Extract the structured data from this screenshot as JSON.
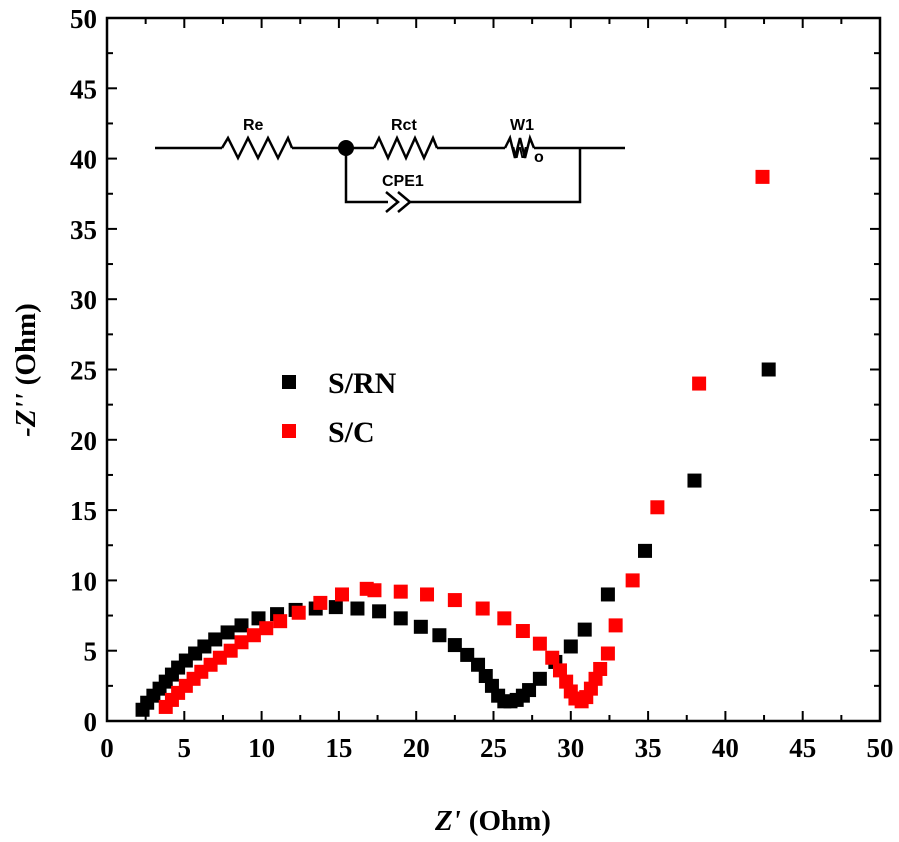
{
  "chart_data": {
    "type": "scatter",
    "xlabel": {
      "symbol": "Z'",
      "unit": "(Ohm)"
    },
    "ylabel": {
      "symbol": "-Z''",
      "unit": "(Ohm)"
    },
    "xlim": [
      0,
      50
    ],
    "ylim": [
      0,
      50
    ],
    "x_ticks": [
      "0",
      "5",
      "10",
      "15",
      "20",
      "25",
      "30",
      "35",
      "40",
      "45",
      "50"
    ],
    "y_ticks": [
      "0",
      "5",
      "10",
      "15",
      "20",
      "25",
      "30",
      "35",
      "40",
      "45",
      "50"
    ],
    "grid": false,
    "legend_position": "middle-left",
    "series": [
      {
        "name": "S/RN",
        "color": "#000000",
        "marker": "square",
        "points": [
          [
            2.3,
            0.8
          ],
          [
            2.6,
            1.3
          ],
          [
            3.0,
            1.8
          ],
          [
            3.4,
            2.3
          ],
          [
            3.8,
            2.8
          ],
          [
            4.2,
            3.3
          ],
          [
            4.6,
            3.8
          ],
          [
            5.1,
            4.3
          ],
          [
            5.7,
            4.8
          ],
          [
            6.3,
            5.3
          ],
          [
            7.0,
            5.8
          ],
          [
            7.8,
            6.3
          ],
          [
            8.7,
            6.8
          ],
          [
            9.8,
            7.3
          ],
          [
            11.0,
            7.6
          ],
          [
            12.2,
            7.9
          ],
          [
            13.5,
            8.0
          ],
          [
            14.8,
            8.1
          ],
          [
            16.2,
            8.0
          ],
          [
            17.6,
            7.8
          ],
          [
            19.0,
            7.3
          ],
          [
            20.3,
            6.7
          ],
          [
            21.5,
            6.1
          ],
          [
            22.5,
            5.4
          ],
          [
            23.3,
            4.7
          ],
          [
            24.0,
            4.0
          ],
          [
            24.5,
            3.2
          ],
          [
            24.9,
            2.5
          ],
          [
            25.3,
            1.8
          ],
          [
            25.7,
            1.4
          ],
          [
            26.1,
            1.4
          ],
          [
            26.5,
            1.5
          ],
          [
            26.9,
            1.8
          ],
          [
            27.3,
            2.2
          ],
          [
            28.0,
            3.0
          ],
          [
            29.0,
            4.2
          ],
          [
            30.0,
            5.3
          ],
          [
            30.9,
            6.5
          ],
          [
            32.4,
            9.0
          ],
          [
            34.8,
            12.1
          ],
          [
            38.0,
            17.1
          ],
          [
            42.8,
            25.0
          ]
        ]
      },
      {
        "name": "S/C",
        "color": "#ff0000",
        "marker": "square",
        "points": [
          [
            3.8,
            1.0
          ],
          [
            4.2,
            1.5
          ],
          [
            4.6,
            2.0
          ],
          [
            5.1,
            2.5
          ],
          [
            5.6,
            3.0
          ],
          [
            6.1,
            3.5
          ],
          [
            6.7,
            4.0
          ],
          [
            7.3,
            4.5
          ],
          [
            8.0,
            5.0
          ],
          [
            8.7,
            5.6
          ],
          [
            9.5,
            6.1
          ],
          [
            10.3,
            6.6
          ],
          [
            11.2,
            7.1
          ],
          [
            12.4,
            7.7
          ],
          [
            13.8,
            8.4
          ],
          [
            15.2,
            9.0
          ],
          [
            16.8,
            9.4
          ],
          [
            17.3,
            9.3
          ],
          [
            19.0,
            9.2
          ],
          [
            20.7,
            9.0
          ],
          [
            22.5,
            8.6
          ],
          [
            24.3,
            8.0
          ],
          [
            25.7,
            7.3
          ],
          [
            26.9,
            6.4
          ],
          [
            28.0,
            5.5
          ],
          [
            28.8,
            4.5
          ],
          [
            29.3,
            3.6
          ],
          [
            29.7,
            2.8
          ],
          [
            30.0,
            2.1
          ],
          [
            30.3,
            1.6
          ],
          [
            30.7,
            1.4
          ],
          [
            31.0,
            1.7
          ],
          [
            31.3,
            2.3
          ],
          [
            31.6,
            3.0
          ],
          [
            31.9,
            3.7
          ],
          [
            32.4,
            4.8
          ],
          [
            32.9,
            6.8
          ],
          [
            34.0,
            10.0
          ],
          [
            35.6,
            15.2
          ],
          [
            38.3,
            24.0
          ],
          [
            42.4,
            38.7
          ]
        ]
      }
    ],
    "inset": {
      "type": "equivalent-circuit",
      "labels": {
        "re": "Re",
        "rct": "Rct",
        "w1": "W1",
        "w_symbol": "W",
        "w_subscript": "o",
        "cpe": "CPE1"
      }
    }
  }
}
